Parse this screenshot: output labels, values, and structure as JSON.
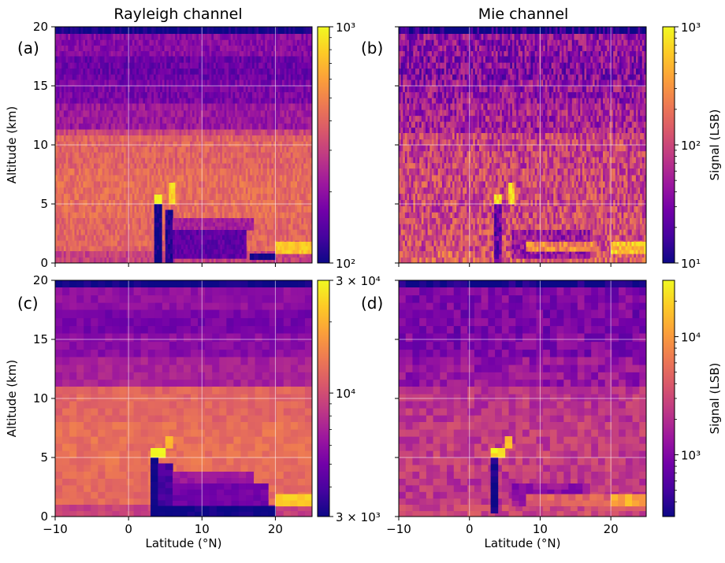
{
  "column_titles": [
    "Rayleigh channel",
    "Mie channel"
  ],
  "colormap": [
    "#0d0887",
    "#46039f",
    "#7201a8",
    "#9c179e",
    "#bd3786",
    "#d8576b",
    "#ed7953",
    "#fb9f3a",
    "#fdca26",
    "#f0f921"
  ],
  "chart_data": [
    {
      "type": "heatmap",
      "panel_label": "(a)",
      "title": "Rayleigh channel",
      "xlabel": "",
      "ylabel": "Altitude (km)",
      "xlim": [
        -10,
        25
      ],
      "ylim": [
        0,
        20
      ],
      "x_ticks": [
        -10,
        0,
        10,
        20
      ],
      "y_ticks": [
        0,
        5,
        10,
        15,
        20
      ],
      "y_tick_labels": [
        "0",
        "5",
        "10",
        "15",
        "20"
      ],
      "grid": true,
      "colorbar": {
        "scale": "log",
        "min": 100,
        "max": 1000,
        "tick_values": [
          100,
          1000
        ],
        "tick_labels": [
          "10²",
          "10³"
        ],
        "label": ""
      },
      "profile_baseline": [
        {
          "from": 19.4,
          "to": 20,
          "value": 100
        },
        {
          "from": 17.5,
          "to": 19.4,
          "value": 190
        },
        {
          "from": 15.5,
          "to": 17.5,
          "value": 160
        },
        {
          "from": 13.5,
          "to": 15.5,
          "value": 175
        },
        {
          "from": 11.3,
          "to": 13.5,
          "value": 215
        },
        {
          "from": 10.8,
          "to": 11.3,
          "value": 310
        },
        {
          "from": 8.0,
          "to": 10.8,
          "value": 390
        },
        {
          "from": 3.8,
          "to": 8.0,
          "value": 420
        },
        {
          "from": 1.0,
          "to": 3.8,
          "value": 400
        },
        {
          "from": 0,
          "to": 1.0,
          "value": 300
        }
      ],
      "features": [
        {
          "lat": [
            3.5,
            4.5
          ],
          "alt": [
            5.0,
            5.8
          ],
          "value": 1000
        },
        {
          "lat": [
            3.5,
            4.5
          ],
          "alt": [
            0,
            5.0
          ],
          "value": 100
        },
        {
          "lat": [
            5.5,
            6.3
          ],
          "alt": [
            5.0,
            6.8
          ],
          "value": 800
        },
        {
          "lat": [
            5.0,
            6.0
          ],
          "alt": [
            0,
            4.5
          ],
          "value": 110
        },
        {
          "lat": [
            6.0,
            17.0
          ],
          "alt": [
            2.8,
            3.8
          ],
          "value": 230
        },
        {
          "lat": [
            6.0,
            16.0
          ],
          "alt": [
            0.4,
            2.8
          ],
          "value": 150
        },
        {
          "lat": [
            16.5,
            20.0
          ],
          "alt": [
            0.3,
            0.8
          ],
          "value": 100
        },
        {
          "lat": [
            20.0,
            25.0
          ],
          "alt": [
            0.8,
            1.8
          ],
          "value": 750
        }
      ]
    },
    {
      "type": "heatmap",
      "panel_label": "(b)",
      "title": "Mie channel",
      "xlabel": "",
      "ylabel": "",
      "xlim": [
        -10,
        25
      ],
      "ylim": [
        0,
        20
      ],
      "x_ticks": [
        -10,
        0,
        10,
        20
      ],
      "y_ticks": [
        0,
        5,
        10,
        15,
        20
      ],
      "y_tick_labels": [],
      "grid": true,
      "colorbar": {
        "scale": "log",
        "min": 10,
        "max": 1000,
        "tick_values": [
          10,
          100,
          1000
        ],
        "tick_labels": [
          "10¹",
          "10²",
          "10³"
        ],
        "label": "Signal (LSB)"
      },
      "profile_baseline": [
        {
          "from": 19.4,
          "to": 20,
          "value": 10
        },
        {
          "from": 17.5,
          "to": 19.4,
          "value": 40
        },
        {
          "from": 15.5,
          "to": 17.5,
          "value": 35
        },
        {
          "from": 13.5,
          "to": 15.5,
          "value": 45
        },
        {
          "from": 11.0,
          "to": 13.5,
          "value": 55
        },
        {
          "from": 8.0,
          "to": 11.0,
          "value": 90
        },
        {
          "from": 3.8,
          "to": 8.0,
          "value": 100
        },
        {
          "from": 1.0,
          "to": 3.8,
          "value": 110
        },
        {
          "from": 0,
          "to": 1.0,
          "value": 150
        }
      ],
      "features": [
        {
          "lat": [
            3.5,
            4.5
          ],
          "alt": [
            5.0,
            5.8
          ],
          "value": 900
        },
        {
          "lat": [
            3.5,
            4.5
          ],
          "alt": [
            0,
            5.0
          ],
          "value": 25
        },
        {
          "lat": [
            5.5,
            6.3
          ],
          "alt": [
            5.0,
            6.8
          ],
          "value": 600
        },
        {
          "lat": [
            6.0,
            17.0
          ],
          "alt": [
            0.4,
            2.8
          ],
          "value": 45
        },
        {
          "lat": [
            8.0,
            18.0
          ],
          "alt": [
            1.0,
            1.8
          ],
          "value": 250
        },
        {
          "lat": [
            20.0,
            25.0
          ],
          "alt": [
            0.8,
            1.8
          ],
          "value": 500
        }
      ]
    },
    {
      "type": "heatmap",
      "panel_label": "(c)",
      "title": "",
      "xlabel": "Latitude (°N)",
      "ylabel": "Altitude (km)",
      "xlim": [
        -10,
        25
      ],
      "ylim": [
        0,
        20
      ],
      "x_ticks": [
        -10,
        0,
        10,
        20
      ],
      "y_ticks": [
        0,
        5,
        10,
        15,
        20
      ],
      "y_tick_labels": [
        "0",
        "5",
        "10",
        "15",
        "20"
      ],
      "grid": true,
      "colorbar": {
        "scale": "log",
        "min": 3000,
        "max": 30000,
        "tick_values": [
          3000,
          10000,
          30000
        ],
        "tick_labels": [
          "3 × 10³",
          "10⁴",
          "3 × 10⁴"
        ],
        "label": ""
      },
      "profile_baseline": [
        {
          "from": 19.4,
          "to": 20,
          "value": 3000
        },
        {
          "from": 17.5,
          "to": 19.4,
          "value": 6000
        },
        {
          "from": 15.5,
          "to": 17.5,
          "value": 5200
        },
        {
          "from": 13.5,
          "to": 15.5,
          "value": 5800
        },
        {
          "from": 11.0,
          "to": 13.5,
          "value": 7000
        },
        {
          "from": 8.0,
          "to": 11.0,
          "value": 12000
        },
        {
          "from": 3.8,
          "to": 8.0,
          "value": 13000
        },
        {
          "from": 1.0,
          "to": 3.8,
          "value": 12500
        },
        {
          "from": 0,
          "to": 1.0,
          "value": 9000
        }
      ],
      "features": [
        {
          "lat": [
            3.0,
            5.0
          ],
          "alt": [
            5.0,
            5.8
          ],
          "value": 30000
        },
        {
          "lat": [
            3.0,
            4.0
          ],
          "alt": [
            0,
            5.0
          ],
          "value": 3000
        },
        {
          "lat": [
            5.0,
            6.0
          ],
          "alt": [
            5.8,
            6.8
          ],
          "value": 20000
        },
        {
          "lat": [
            4.0,
            6.0
          ],
          "alt": [
            0.9,
            4.5
          ],
          "value": 4000
        },
        {
          "lat": [
            6.0,
            17.0
          ],
          "alt": [
            2.8,
            3.8
          ],
          "value": 6500
        },
        {
          "lat": [
            6.0,
            19.0
          ],
          "alt": [
            0.9,
            2.8
          ],
          "value": 5000
        },
        {
          "lat": [
            4.0,
            20.0
          ],
          "alt": [
            0,
            0.9
          ],
          "value": 3000
        },
        {
          "lat": [
            20.0,
            25.0
          ],
          "alt": [
            0.9,
            1.9
          ],
          "value": 23000
        }
      ]
    },
    {
      "type": "heatmap",
      "panel_label": "(d)",
      "title": "",
      "xlabel": "Latitude (°N)",
      "ylabel": "",
      "xlim": [
        -10,
        25
      ],
      "ylim": [
        0,
        20
      ],
      "x_ticks": [
        -10,
        0,
        10,
        20
      ],
      "y_ticks": [
        0,
        5,
        10,
        15,
        20
      ],
      "y_tick_labels": [],
      "grid": true,
      "colorbar": {
        "scale": "log",
        "min": 300,
        "max": 30000,
        "tick_values": [
          1000,
          10000
        ],
        "tick_labels": [
          "10³",
          "10⁴"
        ],
        "label": "Signal (LSB)"
      },
      "profile_baseline": [
        {
          "from": 19.4,
          "to": 20,
          "value": 300
        },
        {
          "from": 17.5,
          "to": 19.4,
          "value": 1000
        },
        {
          "from": 15.5,
          "to": 17.5,
          "value": 900
        },
        {
          "from": 13.5,
          "to": 15.5,
          "value": 1000
        },
        {
          "from": 11.0,
          "to": 13.5,
          "value": 1300
        },
        {
          "from": 8.0,
          "to": 11.0,
          "value": 2200
        },
        {
          "from": 3.8,
          "to": 8.0,
          "value": 2500
        },
        {
          "from": 1.0,
          "to": 3.8,
          "value": 2300
        },
        {
          "from": 0,
          "to": 1.0,
          "value": 3000
        }
      ],
      "features": [
        {
          "lat": [
            3.0,
            5.0
          ],
          "alt": [
            5.0,
            5.8
          ],
          "value": 25000
        },
        {
          "lat": [
            3.0,
            4.0
          ],
          "alt": [
            0.3,
            5.0
          ],
          "value": 300
        },
        {
          "lat": [
            5.0,
            6.0
          ],
          "alt": [
            5.8,
            6.8
          ],
          "value": 15000
        },
        {
          "lat": [
            6.0,
            17.0
          ],
          "alt": [
            0.9,
            2.8
          ],
          "value": 1200
        },
        {
          "lat": [
            8.0,
            20.0
          ],
          "alt": [
            0.9,
            1.9
          ],
          "value": 4500
        },
        {
          "lat": [
            20.0,
            25.0
          ],
          "alt": [
            0.9,
            1.9
          ],
          "value": 12000
        }
      ]
    }
  ]
}
